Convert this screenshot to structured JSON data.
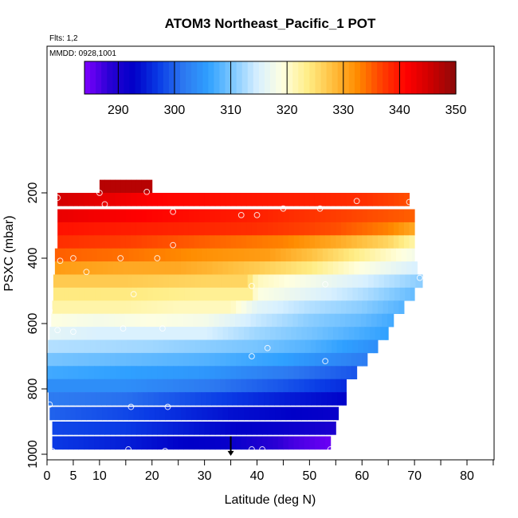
{
  "chart_data": {
    "type": "heatmap",
    "title": "ATOM3 Northeast_Pacific_1 POT",
    "flights_note": "Flts: 1,2",
    "dates_note": "MMDD: 0928,1001",
    "xlabel": "Latitude (deg N)",
    "ylabel": "PSXC (mbar)",
    "xlim": [
      0,
      85
    ],
    "ylim": [
      1000,
      80
    ],
    "x_ticks": [
      0,
      5,
      10,
      20,
      30,
      40,
      50,
      60,
      70,
      80
    ],
    "x_tick_labels": [
      "0",
      "5",
      "10",
      "20",
      "30",
      "40",
      "50",
      "60",
      "70",
      "80"
    ],
    "y_ticks": [
      1000,
      800,
      600,
      400,
      200
    ],
    "y_tick_labels": [
      "1000",
      "800",
      "600",
      "400",
      "200"
    ],
    "colorbar": {
      "range": [
        284,
        350
      ],
      "ticks": [
        290,
        300,
        310,
        320,
        330,
        340,
        350
      ],
      "tick_labels": [
        "290",
        "300",
        "310",
        "320",
        "330",
        "340",
        "350"
      ],
      "colors": [
        "#7f00ff",
        "#2a00d4",
        "#0000c8",
        "#0a3ce6",
        "#2d78f0",
        "#2fa0ff",
        "#7fc8ff",
        "#d8f0ff",
        "#ffffe0",
        "#ffee88",
        "#ffc040",
        "#ff8c00",
        "#ff4000",
        "#ff0000",
        "#cc0000",
        "#8b0a0a"
      ]
    },
    "bands": [
      {
        "p": 180,
        "x0": 10,
        "x1": 20,
        "v": [
          [
            10,
            347
          ],
          [
            20,
            347
          ]
        ]
      },
      {
        "p": 220,
        "x0": 2,
        "x1": 69,
        "v": [
          [
            2,
            345
          ],
          [
            12,
            343
          ],
          [
            22,
            341
          ],
          [
            35,
            340
          ],
          [
            50,
            339
          ],
          [
            60,
            338
          ],
          [
            69,
            336
          ]
        ]
      },
      {
        "p": 270,
        "x0": 2,
        "x1": 70,
        "v": [
          [
            2,
            343
          ],
          [
            20,
            341
          ],
          [
            40,
            339
          ],
          [
            55,
            337
          ],
          [
            70,
            335
          ]
        ]
      },
      {
        "p": 310,
        "x0": 2,
        "x1": 70,
        "v": [
          [
            2,
            340
          ],
          [
            20,
            339
          ],
          [
            40,
            338
          ],
          [
            55,
            336
          ],
          [
            65,
            333
          ],
          [
            70,
            330
          ]
        ]
      },
      {
        "p": 350,
        "x0": 2,
        "x1": 70,
        "v": [
          [
            2,
            338
          ],
          [
            15,
            337
          ],
          [
            30,
            335
          ],
          [
            45,
            333
          ],
          [
            55,
            330
          ],
          [
            65,
            326
          ],
          [
            70,
            322
          ]
        ]
      },
      {
        "p": 390,
        "x0": 1.5,
        "x1": 70,
        "v": [
          [
            2,
            335
          ],
          [
            15,
            334
          ],
          [
            30,
            332
          ],
          [
            42,
            331
          ],
          [
            50,
            328
          ],
          [
            60,
            323
          ],
          [
            70,
            318
          ]
        ]
      },
      {
        "p": 430,
        "x0": 1.5,
        "x1": 70.5,
        "v": [
          [
            2,
            331
          ],
          [
            15,
            330
          ],
          [
            25,
            330
          ],
          [
            31,
            329
          ],
          [
            40,
            327
          ],
          [
            50,
            324
          ],
          [
            60,
            319
          ],
          [
            70,
            315
          ]
        ]
      },
      {
        "p": 470,
        "x0": 1.2,
        "x1": 71.5,
        "v": [
          [
            1,
            327
          ],
          [
            15,
            327
          ],
          [
            30,
            326
          ],
          [
            38,
            326
          ],
          [
            40,
            321
          ],
          [
            50,
            318
          ],
          [
            60,
            315
          ],
          [
            71,
            311
          ]
        ]
      },
      {
        "p": 510,
        "x0": 1.2,
        "x1": 70,
        "v": [
          [
            1,
            324
          ],
          [
            15,
            324
          ],
          [
            30,
            323
          ],
          [
            39,
            323
          ],
          [
            40,
            319
          ],
          [
            50,
            316
          ],
          [
            60,
            313
          ],
          [
            70,
            309
          ]
        ]
      },
      {
        "p": 550,
        "x0": 1,
        "x1": 68,
        "v": [
          [
            1,
            322
          ],
          [
            15,
            322
          ],
          [
            25,
            321
          ],
          [
            35,
            321
          ],
          [
            40,
            316
          ],
          [
            50,
            313
          ],
          [
            60,
            311
          ],
          [
            68,
            308
          ]
        ]
      },
      {
        "p": 590,
        "x0": 0.8,
        "x1": 66,
        "v": [
          [
            1,
            319
          ],
          [
            10,
            318
          ],
          [
            20,
            319
          ],
          [
            30,
            318
          ],
          [
            40,
            314
          ],
          [
            50,
            311
          ],
          [
            60,
            309
          ],
          [
            66,
            307
          ]
        ]
      },
      {
        "p": 630,
        "x0": 0.5,
        "x1": 65,
        "v": [
          [
            1,
            316
          ],
          [
            10,
            315
          ],
          [
            20,
            315
          ],
          [
            30,
            315
          ],
          [
            40,
            312
          ],
          [
            50,
            310
          ],
          [
            65,
            306
          ]
        ]
      },
      {
        "p": 670,
        "x0": 0.2,
        "x1": 63,
        "v": [
          [
            0,
            313
          ],
          [
            20,
            312
          ],
          [
            40,
            310
          ],
          [
            50,
            308
          ],
          [
            63,
            304
          ]
        ]
      },
      {
        "p": 710,
        "x0": 0,
        "x1": 61,
        "v": [
          [
            0,
            310
          ],
          [
            15,
            309
          ],
          [
            30,
            308
          ],
          [
            45,
            306
          ],
          [
            61,
            302
          ]
        ]
      },
      {
        "p": 750,
        "x0": 0,
        "x1": 59,
        "v": [
          [
            0,
            307
          ],
          [
            15,
            306
          ],
          [
            30,
            305
          ],
          [
            45,
            302
          ],
          [
            59,
            299
          ]
        ]
      },
      {
        "p": 790,
        "x0": 0,
        "x1": 57,
        "v": [
          [
            0,
            304
          ],
          [
            15,
            304
          ],
          [
            30,
            302
          ],
          [
            45,
            299
          ],
          [
            57,
            296
          ]
        ]
      },
      {
        "p": 830,
        "x0": 0.3,
        "x1": 57,
        "v": [
          [
            0,
            302
          ],
          [
            15,
            301
          ],
          [
            25,
            299
          ],
          [
            35,
            297
          ],
          [
            45,
            295
          ],
          [
            57,
            293
          ]
        ]
      },
      {
        "p": 875,
        "x0": 0.5,
        "x1": 55.5,
        "v": [
          [
            1,
            300
          ],
          [
            15,
            298
          ],
          [
            25,
            296
          ],
          [
            35,
            294
          ],
          [
            45,
            293
          ],
          [
            55,
            292
          ]
        ]
      },
      {
        "p": 920,
        "x0": 1,
        "x1": 55,
        "v": [
          [
            1,
            298
          ],
          [
            15,
            297
          ],
          [
            25,
            295
          ],
          [
            35,
            293
          ],
          [
            45,
            292
          ],
          [
            55,
            290
          ]
        ]
      },
      {
        "p": 965,
        "x0": 1,
        "x1": 54,
        "v": [
          [
            1,
            297
          ],
          [
            15,
            295
          ],
          [
            25,
            293
          ],
          [
            35,
            292
          ],
          [
            40,
            290
          ],
          [
            47,
            287
          ],
          [
            54,
            285
          ]
        ]
      }
    ],
    "band_half_height": 20,
    "band_edges": [
      [
        180,
        10,
        20
      ],
      [
        200,
        2,
        69
      ],
      [
        240,
        2,
        69.5
      ],
      [
        290,
        2,
        70
      ],
      [
        330,
        2,
        70
      ],
      [
        370,
        1.8,
        70
      ],
      [
        410,
        1.6,
        70.5
      ],
      [
        450,
        1.4,
        71.5
      ],
      [
        490,
        1.2,
        70
      ],
      [
        530,
        1.1,
        68
      ],
      [
        570,
        1,
        66.5
      ],
      [
        610,
        0.8,
        65
      ],
      [
        650,
        0.6,
        63
      ],
      [
        690,
        0.3,
        61.5
      ],
      [
        730,
        0,
        59.5
      ],
      [
        770,
        0,
        57.5
      ],
      [
        810,
        0,
        57
      ],
      [
        850,
        0.3,
        56
      ],
      [
        895,
        0.5,
        55
      ],
      [
        940,
        1,
        54
      ],
      [
        990,
        1,
        54
      ]
    ],
    "points": [
      [
        2,
        215
      ],
      [
        10,
        200
      ],
      [
        11,
        235
      ],
      [
        19,
        197
      ],
      [
        24,
        258
      ],
      [
        45,
        248
      ],
      [
        52,
        248
      ],
      [
        59,
        225
      ],
      [
        69,
        228
      ],
      [
        37,
        268
      ],
      [
        40,
        268
      ],
      [
        24,
        360
      ],
      [
        2.5,
        408
      ],
      [
        5,
        400
      ],
      [
        14,
        400
      ],
      [
        21,
        400
      ],
      [
        7.5,
        442
      ],
      [
        71,
        460
      ],
      [
        39,
        485
      ],
      [
        53,
        480
      ],
      [
        0,
        505
      ],
      [
        16.5,
        510
      ],
      [
        0.5,
        560
      ],
      [
        2,
        620
      ],
      [
        5,
        625
      ],
      [
        14.5,
        615
      ],
      [
        22,
        615
      ],
      [
        42,
        675
      ],
      [
        39,
        700
      ],
      [
        53,
        715
      ],
      [
        0.5,
        848
      ],
      [
        16,
        855
      ],
      [
        23,
        855
      ],
      [
        1,
        990
      ],
      [
        15.5,
        985
      ],
      [
        22.5,
        990
      ],
      [
        39,
        985
      ],
      [
        41,
        985
      ],
      [
        47.5,
        1005
      ],
      [
        54,
        985
      ]
    ],
    "marker": {
      "x": 35,
      "p": 960
    }
  }
}
